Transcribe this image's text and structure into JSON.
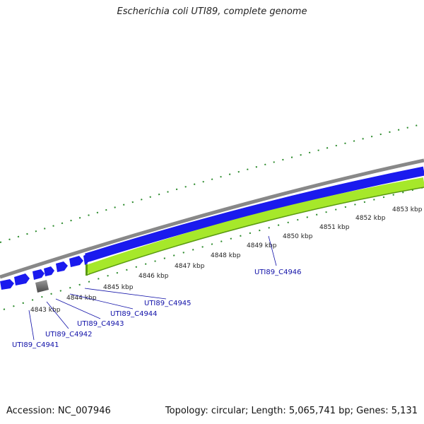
{
  "title": "Escherichia coli UTI89, complete genome",
  "footer": {
    "accession": "Accession: NC_007946",
    "info": "Topology: circular; Length: 5,065,741 bp; Genes: 5,131"
  },
  "colors": {
    "backbone": "#888888",
    "forward_cds": "#1a1aee",
    "reverse_cds": "#a6e82a",
    "reverse_cds_edge": "#5a9a10",
    "ticks": "#2a8a2a",
    "gene_label": "#1010a8",
    "gray_feature": "#666666"
  },
  "scale_labels": [
    "4843 kbp",
    "4844 kbp",
    "4845 kbp",
    "4846 kbp",
    "4847 kbp",
    "4848 kbp",
    "4849 kbp",
    "4850 kbp",
    "4851 kbp",
    "4852 kbp",
    "4853 kbp"
  ],
  "genes": [
    "UTI89_C4941",
    "UTI89_C4942",
    "UTI89_C4943",
    "UTI89_C4944",
    "UTI89_C4945",
    "UTI89_C4946"
  ]
}
